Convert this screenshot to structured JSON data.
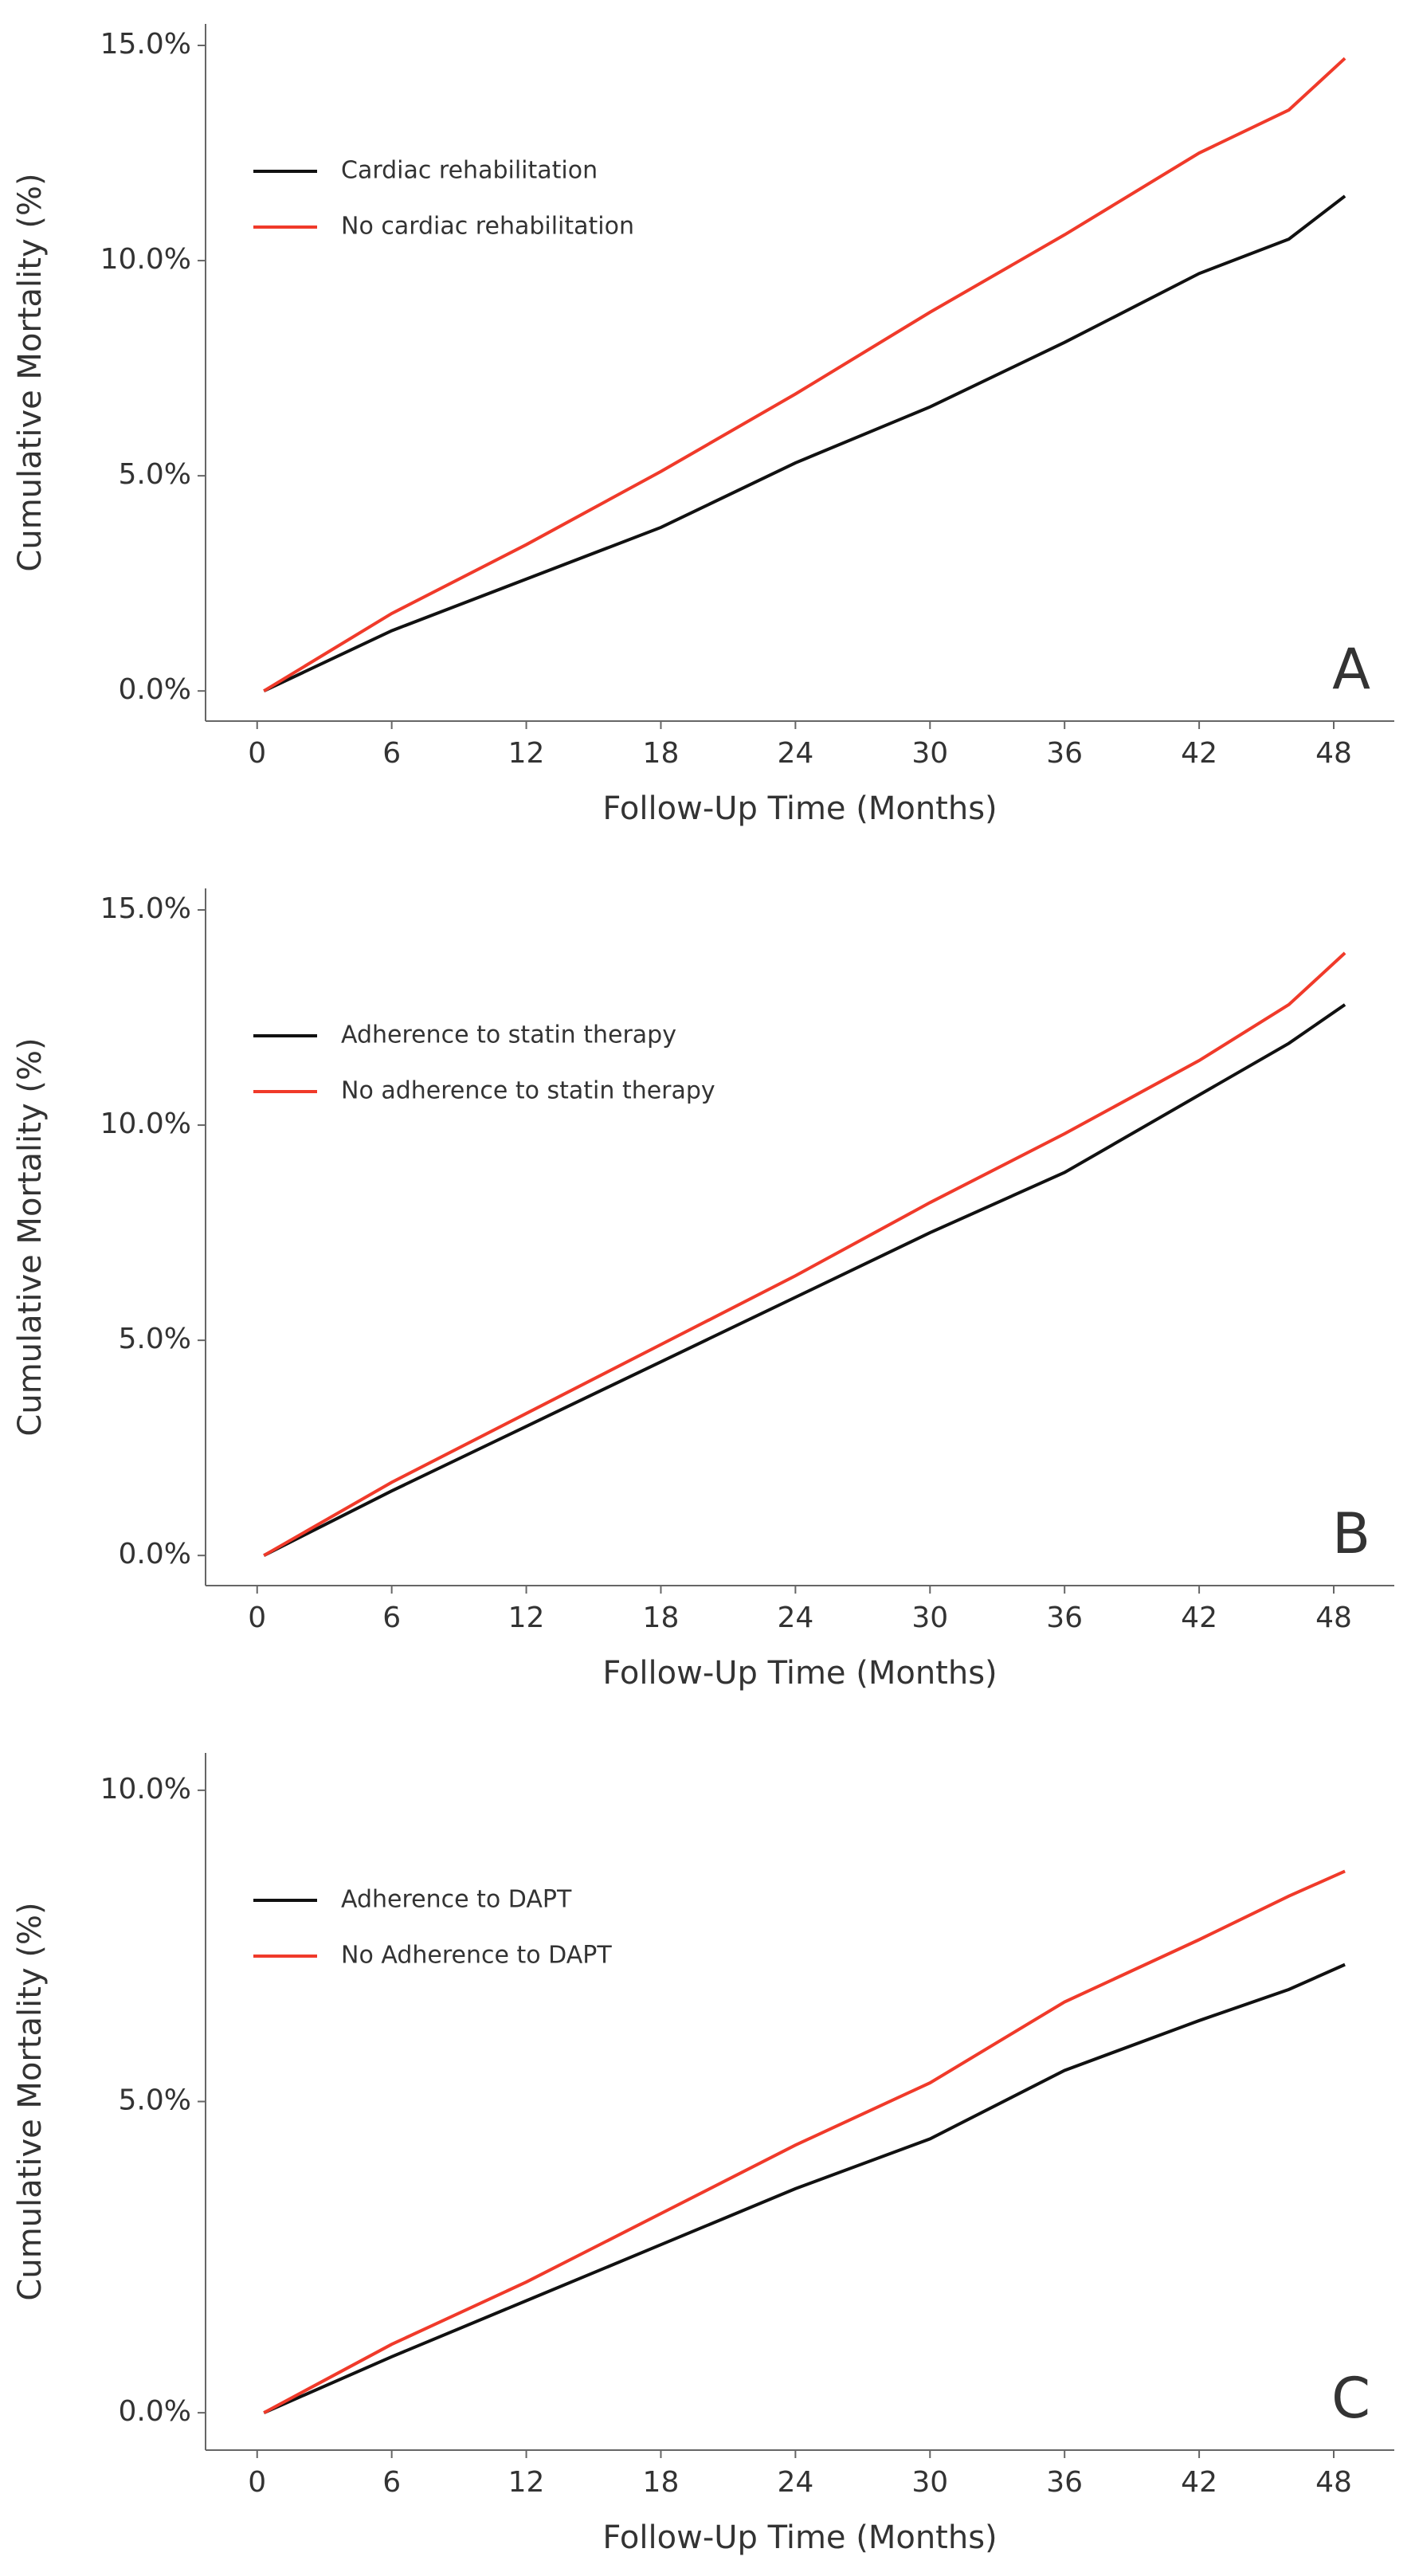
{
  "chart_data": [
    {
      "type": "line",
      "panel_label": "A",
      "xlabel": "Follow-Up Time (Months)",
      "ylabel": "Cumulative Mortality (%)",
      "x": [
        0.3,
        6,
        12,
        18,
        24,
        30,
        36,
        42,
        46,
        48.5
      ],
      "series": [
        {
          "name": "Cardiac rehabilitation",
          "color": "#111111",
          "values": [
            0,
            1.4,
            2.6,
            3.8,
            5.3,
            6.6,
            8.1,
            9.7,
            10.5,
            11.5
          ]
        },
        {
          "name": "No cardiac rehabilitation",
          "color": "#f03a2a",
          "values": [
            0,
            1.8,
            3.4,
            5.1,
            6.9,
            8.8,
            10.6,
            12.5,
            13.5,
            14.7
          ]
        }
      ],
      "xlim": [
        -2.3,
        50.7
      ],
      "xticks": [
        0,
        6,
        12,
        18,
        24,
        30,
        36,
        42,
        48
      ],
      "ylim": [
        -0.7,
        15.5
      ],
      "yticks": [
        {
          "value": 0,
          "label": "0.0%"
        },
        {
          "value": 5,
          "label": "5.0%"
        },
        {
          "value": 10,
          "label": "10.0%"
        },
        {
          "value": 15,
          "label": "15.0%"
        }
      ]
    },
    {
      "type": "line",
      "panel_label": "B",
      "xlabel": "Follow-Up Time (Months)",
      "ylabel": "Cumulative Mortality (%)",
      "x": [
        0.3,
        6,
        12,
        18,
        24,
        30,
        36,
        42,
        46,
        48.5
      ],
      "series": [
        {
          "name": "Adherence to statin therapy",
          "color": "#111111",
          "values": [
            0,
            1.5,
            3.0,
            4.5,
            6.0,
            7.5,
            8.9,
            10.7,
            11.9,
            12.8
          ]
        },
        {
          "name": "No adherence to statin therapy",
          "color": "#f03a2a",
          "values": [
            0,
            1.7,
            3.3,
            4.9,
            6.5,
            8.2,
            9.8,
            11.5,
            12.8,
            14.0
          ]
        }
      ],
      "xlim": [
        -2.3,
        50.7
      ],
      "xticks": [
        0,
        6,
        12,
        18,
        24,
        30,
        36,
        42,
        48
      ],
      "ylim": [
        -0.7,
        15.5
      ],
      "yticks": [
        {
          "value": 0,
          "label": "0.0%"
        },
        {
          "value": 5,
          "label": "5.0%"
        },
        {
          "value": 10,
          "label": "10.0%"
        },
        {
          "value": 15,
          "label": "15.0%"
        }
      ]
    },
    {
      "type": "line",
      "panel_label": "C",
      "xlabel": "Follow-Up Time (Months)",
      "ylabel": "Cumulative Mortality (%)",
      "x": [
        0.3,
        6,
        12,
        18,
        24,
        30,
        36,
        42,
        46,
        48.5
      ],
      "series": [
        {
          "name": "Adherence to DAPT",
          "color": "#111111",
          "values": [
            0,
            0.9,
            1.8,
            2.7,
            3.6,
            4.4,
            5.5,
            6.3,
            6.8,
            7.2
          ]
        },
        {
          "name": "No Adherence to DAPT",
          "color": "#f03a2a",
          "values": [
            0,
            1.1,
            2.1,
            3.2,
            4.3,
            5.3,
            6.6,
            7.6,
            8.3,
            8.7
          ]
        }
      ],
      "xlim": [
        -2.3,
        50.7
      ],
      "xticks": [
        0,
        6,
        12,
        18,
        24,
        30,
        36,
        42,
        48
      ],
      "ylim": [
        -0.6,
        10.6
      ],
      "yticks": [
        {
          "value": 0,
          "label": "0.0%"
        },
        {
          "value": 5,
          "label": "5.0%"
        },
        {
          "value": 10,
          "label": "10.0%"
        }
      ]
    }
  ]
}
